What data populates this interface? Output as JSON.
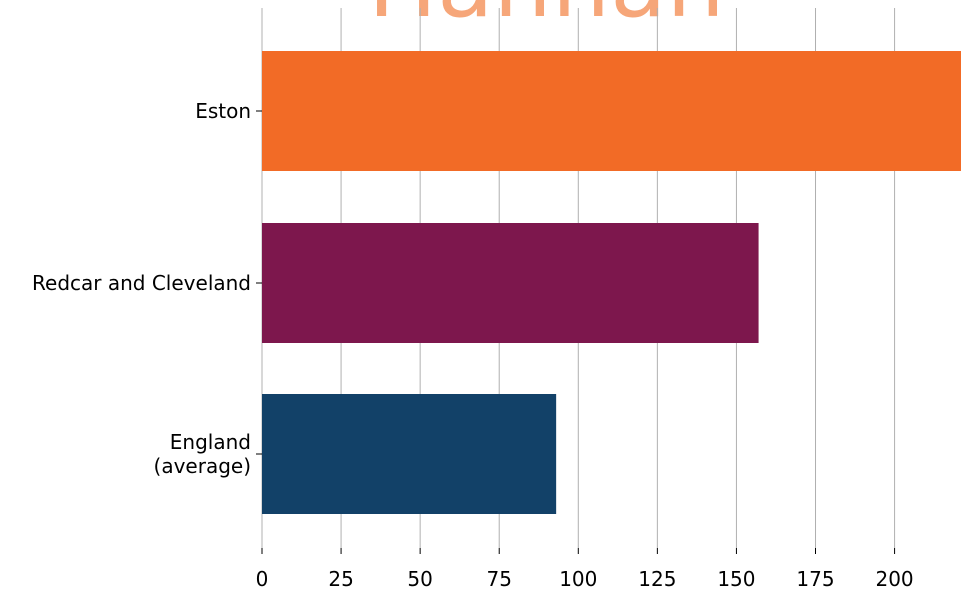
{
  "chart_data": {
    "type": "bar",
    "orientation": "horizontal",
    "categories": [
      "Eston",
      "Redcar and Cleveland",
      "England\n(average)"
    ],
    "values": [
      221,
      157,
      93
    ],
    "colors": [
      "#f26b26",
      "#7d174d",
      "#124168"
    ],
    "x_ticks": [
      0,
      25,
      50,
      75,
      100,
      125,
      150,
      175,
      200
    ],
    "xlim": [
      0,
      221
    ],
    "grid": "vertical",
    "title": "",
    "xlabel": "",
    "ylabel": "",
    "partial_title_fragment": "Hannah",
    "title_fragment_color": "#f6a679"
  }
}
